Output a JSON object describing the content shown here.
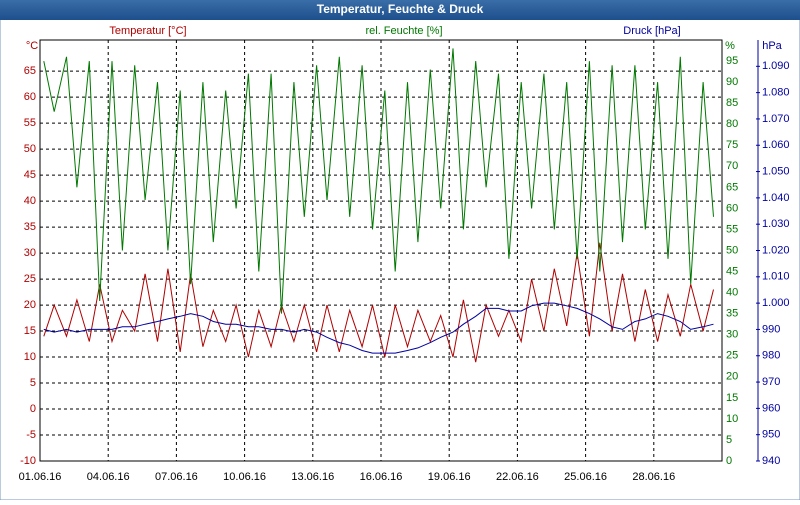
{
  "chart_data": {
    "type": "line",
    "title": "Temperatur, Feuchte & Druck",
    "ylabel": "°C",
    "y2label": "%",
    "y3label": "hPa",
    "x": [
      "2016-06-01T04:00",
      "2016-06-01T15:00",
      "2016-06-02T04:00",
      "2016-06-02T15:00",
      "2016-06-03T04:00",
      "2016-06-03T15:00",
      "2016-06-04T04:00",
      "2016-06-04T15:00",
      "2016-06-05T04:00",
      "2016-06-05T15:00",
      "2016-06-06T04:00",
      "2016-06-06T15:00",
      "2016-06-07T04:00",
      "2016-06-07T15:00",
      "2016-06-08T04:00",
      "2016-06-08T15:00",
      "2016-06-09T04:00",
      "2016-06-09T15:00",
      "2016-06-10T04:00",
      "2016-06-10T15:00",
      "2016-06-11T04:00",
      "2016-06-11T15:00",
      "2016-06-12T04:00",
      "2016-06-12T15:00",
      "2016-06-13T04:00",
      "2016-06-13T15:00",
      "2016-06-14T04:00",
      "2016-06-14T15:00",
      "2016-06-15T04:00",
      "2016-06-15T15:00",
      "2016-06-16T04:00",
      "2016-06-16T15:00",
      "2016-06-17T04:00",
      "2016-06-17T15:00",
      "2016-06-18T04:00",
      "2016-06-18T15:00",
      "2016-06-19T04:00",
      "2016-06-19T15:00",
      "2016-06-20T04:00",
      "2016-06-20T15:00",
      "2016-06-21T04:00",
      "2016-06-21T15:00",
      "2016-06-22T04:00",
      "2016-06-22T15:00",
      "2016-06-23T04:00",
      "2016-06-23T15:00",
      "2016-06-24T04:00",
      "2016-06-24T15:00",
      "2016-06-25T04:00",
      "2016-06-25T15:00",
      "2016-06-26T04:00",
      "2016-06-26T15:00",
      "2016-06-27T04:00",
      "2016-06-27T15:00",
      "2016-06-28T04:00",
      "2016-06-28T15:00",
      "2016-06-29T04:00",
      "2016-06-29T15:00",
      "2016-06-30T04:00",
      "2016-06-30T15:00"
    ],
    "series": [
      {
        "name": "Temperatur [°C]",
        "color": "#b00000",
        "values": [
          14,
          20,
          14,
          21,
          13,
          24,
          13,
          19,
          15,
          26,
          13,
          27,
          11,
          26,
          12,
          19,
          13,
          20,
          10,
          19,
          12,
          20,
          13,
          20,
          11,
          20,
          11,
          19,
          12,
          20,
          10,
          20,
          12,
          19,
          13,
          18,
          10,
          21,
          9,
          20,
          14,
          19,
          13,
          25,
          15,
          27,
          16,
          30,
          14,
          32,
          15,
          26,
          13,
          23,
          13,
          22,
          14,
          24,
          15,
          23
        ]
      },
      {
        "name": "rel. Feuchte [%]",
        "color": "#007800",
        "axis": "y2",
        "values": [
          95,
          83,
          96,
          65,
          95,
          38,
          95,
          50,
          94,
          62,
          90,
          50,
          88,
          42,
          90,
          52,
          88,
          60,
          92,
          45,
          92,
          35,
          90,
          58,
          94,
          62,
          96,
          58,
          94,
          55,
          88,
          45,
          90,
          52,
          93,
          60,
          98,
          55,
          95,
          65,
          92,
          48,
          90,
          60,
          92,
          55,
          90,
          48,
          95,
          45,
          94,
          52,
          94,
          55,
          90,
          48,
          96,
          42,
          90,
          58
        ]
      },
      {
        "name": "Druck [hPa]",
        "color": "#0000a0",
        "axis": "y3",
        "values": [
          990,
          989,
          990,
          989,
          990,
          990,
          990,
          991,
          991,
          992,
          993,
          994,
          995,
          996,
          995,
          993,
          992,
          992,
          991,
          991,
          990,
          990,
          989,
          990,
          989,
          987,
          985,
          984,
          982,
          981,
          981,
          981,
          982,
          983,
          985,
          987,
          989,
          992,
          995,
          998,
          998,
          997,
          997,
          999,
          1000,
          1000,
          999,
          998,
          996,
          994,
          991,
          990,
          993,
          994,
          996,
          995,
          993,
          990,
          991,
          992
        ]
      }
    ],
    "xlim": [
      "2016-06-01T00:00",
      "2016-07-01T00:00"
    ],
    "xticks": [
      {
        "value": "2016-06-01T00:00",
        "label": "01.06.16"
      },
      {
        "value": "2016-06-04T00:00",
        "label": "04.06.16"
      },
      {
        "value": "2016-06-07T00:00",
        "label": "07.06.16"
      },
      {
        "value": "2016-06-10T00:00",
        "label": "10.06.16"
      },
      {
        "value": "2016-06-13T00:00",
        "label": "13.06.16"
      },
      {
        "value": "2016-06-16T00:00",
        "label": "16.06.16"
      },
      {
        "value": "2016-06-19T00:00",
        "label": "19.06.16"
      },
      {
        "value": "2016-06-22T00:00",
        "label": "22.06.16"
      },
      {
        "value": "2016-06-25T00:00",
        "label": "25.06.16"
      },
      {
        "value": "2016-06-28T00:00",
        "label": "28.06.16"
      }
    ],
    "ylim": [
      -10,
      71
    ],
    "yticks": [
      -10,
      -5,
      0,
      5,
      10,
      15,
      20,
      25,
      30,
      35,
      40,
      45,
      50,
      55,
      60,
      65
    ],
    "y2lim": [
      0,
      100
    ],
    "y2ticks": [
      0,
      5,
      10,
      15,
      20,
      25,
      30,
      35,
      40,
      45,
      50,
      55,
      60,
      65,
      70,
      75,
      80,
      85,
      90,
      95
    ],
    "y3lim": [
      940,
      1100
    ],
    "y3ticks": [
      940,
      950,
      960,
      970,
      980,
      990,
      {
        "value": 1000,
        "label": "1.000"
      },
      {
        "value": 1010,
        "label": "1.010"
      },
      {
        "value": 1020,
        "label": "1.020"
      },
      {
        "value": 1030,
        "label": "1.030"
      },
      {
        "value": 1040,
        "label": "1.040"
      },
      {
        "value": 1050,
        "label": "1.050"
      },
      {
        "value": 1060,
        "label": "1.060"
      },
      {
        "value": 1070,
        "label": "1.070"
      },
      {
        "value": 1080,
        "label": "1.080"
      },
      {
        "value": 1090,
        "label": "1.090"
      }
    ],
    "grid": true
  }
}
